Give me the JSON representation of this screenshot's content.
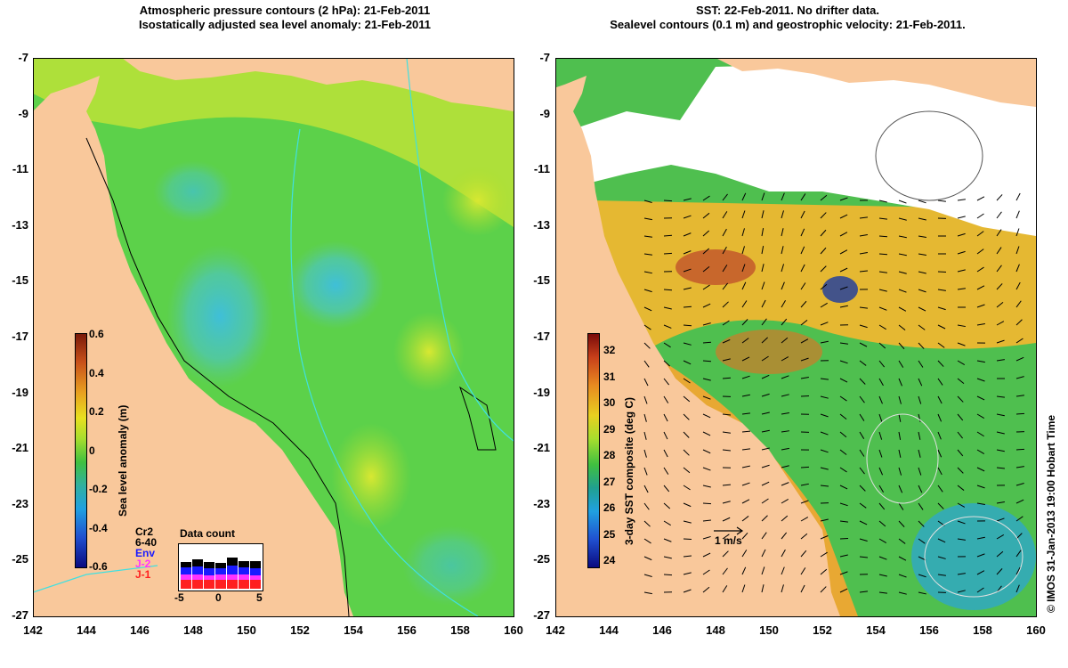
{
  "left_panel": {
    "title_line1": "Atmospheric pressure contours (2 hPa): 21-Feb-2011",
    "title_line2": "Isostatically adjusted sea level anomaly: 21-Feb-2011",
    "colorbar_title": "Sea level anomaly (m)",
    "colorbar_ticks": [
      "0.6",
      "0.4",
      "0.2",
      "0",
      "-0.2",
      "-0.4",
      "-0.6"
    ],
    "inset_title": "Data count",
    "inset_legend": [
      {
        "label": "Cr2",
        "color": "#000000"
      },
      {
        "label": "6-40",
        "color": "#000000"
      },
      {
        "label": "Env",
        "color": "#1a1aff"
      },
      {
        "label": "J-2",
        "color": "#ff33ff"
      },
      {
        "label": "J-1",
        "color": "#ff2020"
      }
    ],
    "inset_xticks": [
      "-5",
      "0",
      "5"
    ]
  },
  "right_panel": {
    "title_line1": "SST: 22-Feb-2011. No drifter data.",
    "title_line2": "Sealevel contours (0.1 m) and geostrophic velocity: 21-Feb-2011.",
    "colorbar_title": "3-day SST composite (deg C)",
    "colorbar_ticks": [
      "32",
      "31",
      "30",
      "29",
      "28",
      "27",
      "26",
      "25",
      "24"
    ],
    "scale_arrow_label": "1 m/s"
  },
  "axes": {
    "y_ticks": [
      "-7",
      "-9",
      "-11",
      "-13",
      "-15",
      "-17",
      "-19",
      "-21",
      "-23",
      "-25",
      "-27"
    ],
    "x_ticks": [
      "142",
      "144",
      "146",
      "148",
      "150",
      "152",
      "154",
      "156",
      "158",
      "160"
    ]
  },
  "copyright": "© IMOS 31-Jan-2013 19:00 Hobart Time",
  "colors": {
    "land": "#f9c89b",
    "cloud": "#ffffff"
  }
}
